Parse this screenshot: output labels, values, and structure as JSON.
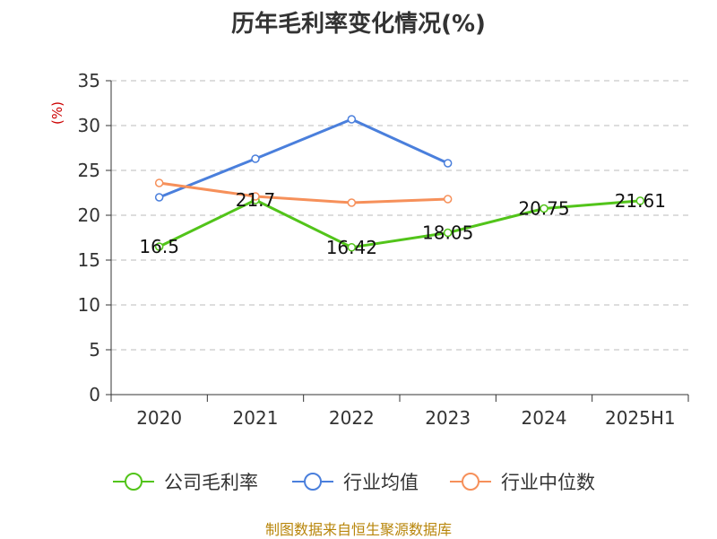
{
  "chart_data": {
    "type": "line",
    "title": "历年毛利率变化情况(%)",
    "ylabel": "(%)",
    "xlabel": "",
    "categories": [
      "2020",
      "2021",
      "2022",
      "2023",
      "2024",
      "2025H1"
    ],
    "ylim": [
      0,
      35
    ],
    "yticks": [
      0,
      5,
      10,
      15,
      20,
      25,
      30,
      35
    ],
    "grid": true,
    "legend_position": "bottom",
    "series": [
      {
        "name": "公司毛利率",
        "values": [
          16.5,
          21.7,
          16.42,
          18.05,
          20.75,
          21.61
        ],
        "labels": [
          "16.5",
          "21.7",
          "16.42",
          "18.05",
          "20.75",
          "21.61"
        ],
        "color": "#52c41a"
      },
      {
        "name": "行业均值",
        "values": [
          22.0,
          26.3,
          30.7,
          25.8,
          null,
          null
        ],
        "color": "#4a7fdc"
      },
      {
        "name": "行业中位数",
        "values": [
          23.6,
          22.1,
          21.4,
          21.8,
          null,
          null
        ],
        "color": "#f6905a"
      }
    ],
    "source": "制图数据来自恒生聚源数据库"
  }
}
